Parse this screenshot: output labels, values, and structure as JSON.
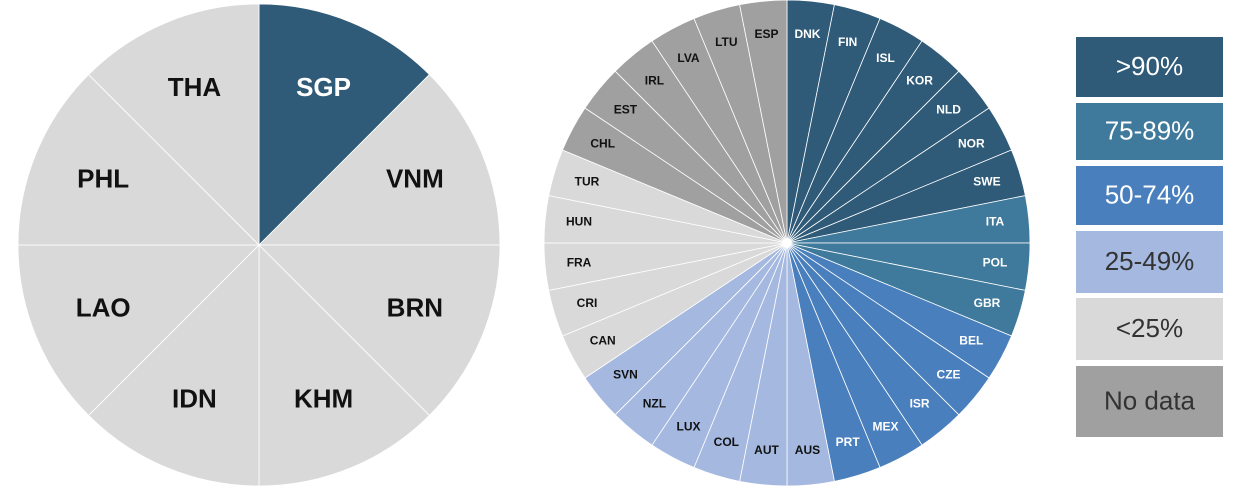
{
  "chart_data": [
    {
      "type": "pie",
      "categories": [
        "SGP",
        "VNM",
        "BRN",
        "KHM",
        "IDN",
        "LAO",
        "PHL",
        "THA"
      ],
      "values": [
        1,
        1,
        1,
        1,
        1,
        1,
        1,
        1
      ],
      "colors": [
        "#2f5a78",
        "#d9d9d9",
        "#d9d9d9",
        "#d9d9d9",
        "#d9d9d9",
        "#d9d9d9",
        "#d9d9d9",
        "#d9d9d9"
      ]
    },
    {
      "type": "pie",
      "categories": [
        "DNK",
        "FIN",
        "ISL",
        "KOR",
        "NLD",
        "NOR",
        "SWE",
        "ITA",
        "POL",
        "GBR",
        "BEL",
        "CZE",
        "ISR",
        "MEX",
        "PRT",
        "AUS",
        "AUT",
        "COL",
        "LUX",
        "NZL",
        "SVN",
        "CAN",
        "CRI",
        "FRA",
        "HUN",
        "TUR",
        "CHL",
        "EST",
        "IRL",
        "LVA",
        "LTU",
        "ESP"
      ],
      "values": [
        1,
        1,
        1,
        1,
        1,
        1,
        1,
        1,
        1,
        1,
        1,
        1,
        1,
        1,
        1,
        1,
        1,
        1,
        1,
        1,
        1,
        1,
        1,
        1,
        1,
        1,
        1,
        1,
        1,
        1,
        1,
        1
      ],
      "colors": [
        "#2f5a78",
        "#2f5a78",
        "#2f5a78",
        "#2f5a78",
        "#2f5a78",
        "#2f5a78",
        "#2f5a78",
        "#3f7a9c",
        "#3f7a9c",
        "#3f7a9c",
        "#4a7fbd",
        "#4a7fbd",
        "#4a7fbd",
        "#4a7fbd",
        "#4a7fbd",
        "#a4b8e0",
        "#a4b8e0",
        "#a4b8e0",
        "#a4b8e0",
        "#a4b8e0",
        "#a4b8e0",
        "#d9d9d9",
        "#d9d9d9",
        "#d9d9d9",
        "#d9d9d9",
        "#d9d9d9",
        "#a0a0a0",
        "#a0a0a0",
        "#a0a0a0",
        "#a0a0a0",
        "#a0a0a0",
        "#a0a0a0"
      ]
    }
  ],
  "legend": {
    "items": [
      {
        "label": ">90%",
        "color": "#2f5a78"
      },
      {
        "label": "75-89%",
        "color": "#3f7a9c"
      },
      {
        "label": "50-74%",
        "color": "#4a7fbd"
      },
      {
        "label": "25-49%",
        "color": "#a4b8e0"
      },
      {
        "label": "<25%",
        "color": "#d9d9d9"
      },
      {
        "label": "No data",
        "color": "#a0a0a0"
      }
    ]
  }
}
